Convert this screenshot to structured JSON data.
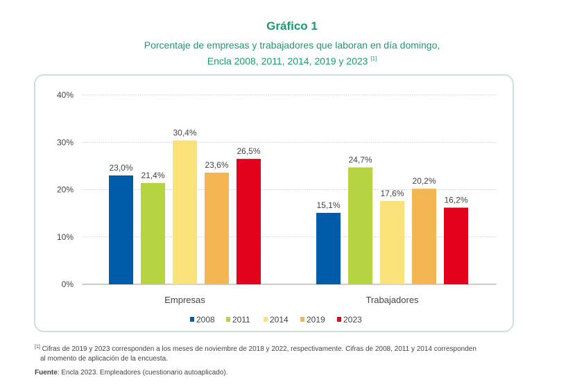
{
  "header": {
    "title": "Gráfico 1",
    "subtitle_line1": "Porcentaje de empresas y trabajadores que laboran en día domingo,",
    "subtitle_line2": "Encla 2008, 2011, 2014, 2019 y 2023",
    "subtitle_ref": "[1]"
  },
  "chart_data": {
    "type": "bar",
    "categories": [
      "Empresas",
      "Trabajadores"
    ],
    "series": [
      {
        "name": "2008",
        "color": "#005ca9",
        "values": [
          23.0,
          15.1
        ],
        "labels": [
          "23,0%",
          "15,1%"
        ]
      },
      {
        "name": "2011",
        "color": "#b6d341",
        "values": [
          21.4,
          24.7
        ],
        "labels": [
          "21,4%",
          "24,7%"
        ]
      },
      {
        "name": "2014",
        "color": "#fae27a",
        "values": [
          30.4,
          17.6
        ],
        "labels": [
          "30,4%",
          "17,6%"
        ]
      },
      {
        "name": "2019",
        "color": "#f3b653",
        "values": [
          23.6,
          20.2
        ],
        "labels": [
          "23,6%",
          "20,2%"
        ]
      },
      {
        "name": "2023",
        "color": "#e2001a",
        "values": [
          26.5,
          16.2
        ],
        "labels": [
          "26,5%",
          "16,2%"
        ]
      }
    ],
    "ylim": [
      0,
      40
    ],
    "yticks": [
      0,
      10,
      20,
      30,
      40
    ],
    "ytick_labels": [
      "0%",
      "10%",
      "20%",
      "30%",
      "40%"
    ],
    "legend_position": "bottom-center",
    "grid": true
  },
  "footnote": {
    "ref": "[1]",
    "text_line1": "Cifras de 2019 y 2023 corresponden a los meses de noviembre de 2018 y 2022, respectivamente. Cifras de 2008, 2011 y 2014 corresponden",
    "text_line2": "al momento de aplicación de la encuesta."
  },
  "source": {
    "label": "Fuente",
    "text": ": Encla 2023. Empleadores (cuestionario autoaplicado)."
  }
}
